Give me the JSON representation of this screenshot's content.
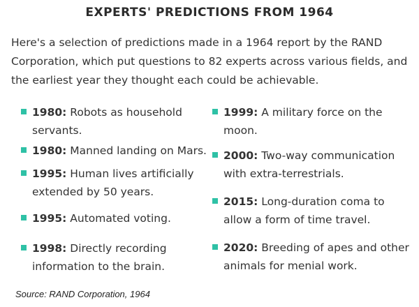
{
  "title": "EXPERTS' PREDICTIONS FROM 1964",
  "intro": "Here's a selection of predictions made in a 1964 report by the RAND Corporation, which put questions to 82 experts across various fields, and the earliest year they thought each could be achievable.",
  "colors": {
    "bullet": "#2fc1a6",
    "text": "#333333"
  },
  "predictions_left": [
    {
      "year": "1980:",
      "text": "Robots as household servants."
    },
    {
      "year": "1980:",
      "text": "Manned landing on Mars."
    },
    {
      "year": "1995:",
      "text": "Human lives artificially extended by 50 years."
    },
    {
      "year": "1995:",
      "text": "Automated voting."
    },
    {
      "year": "1998:",
      "text": "Directly recording information to the brain."
    }
  ],
  "predictions_right": [
    {
      "year": "1999:",
      "text": "A military force on the moon."
    },
    {
      "year": "2000:",
      "text": "Two-way communication with extra-terrestrials."
    },
    {
      "year": "2015:",
      "text": "Long-duration coma to allow a form of time travel."
    },
    {
      "year": "2020:",
      "text": "Breeding of apes and other animals for menial work."
    }
  ],
  "source": "Source:  RAND Corporation, 1964"
}
